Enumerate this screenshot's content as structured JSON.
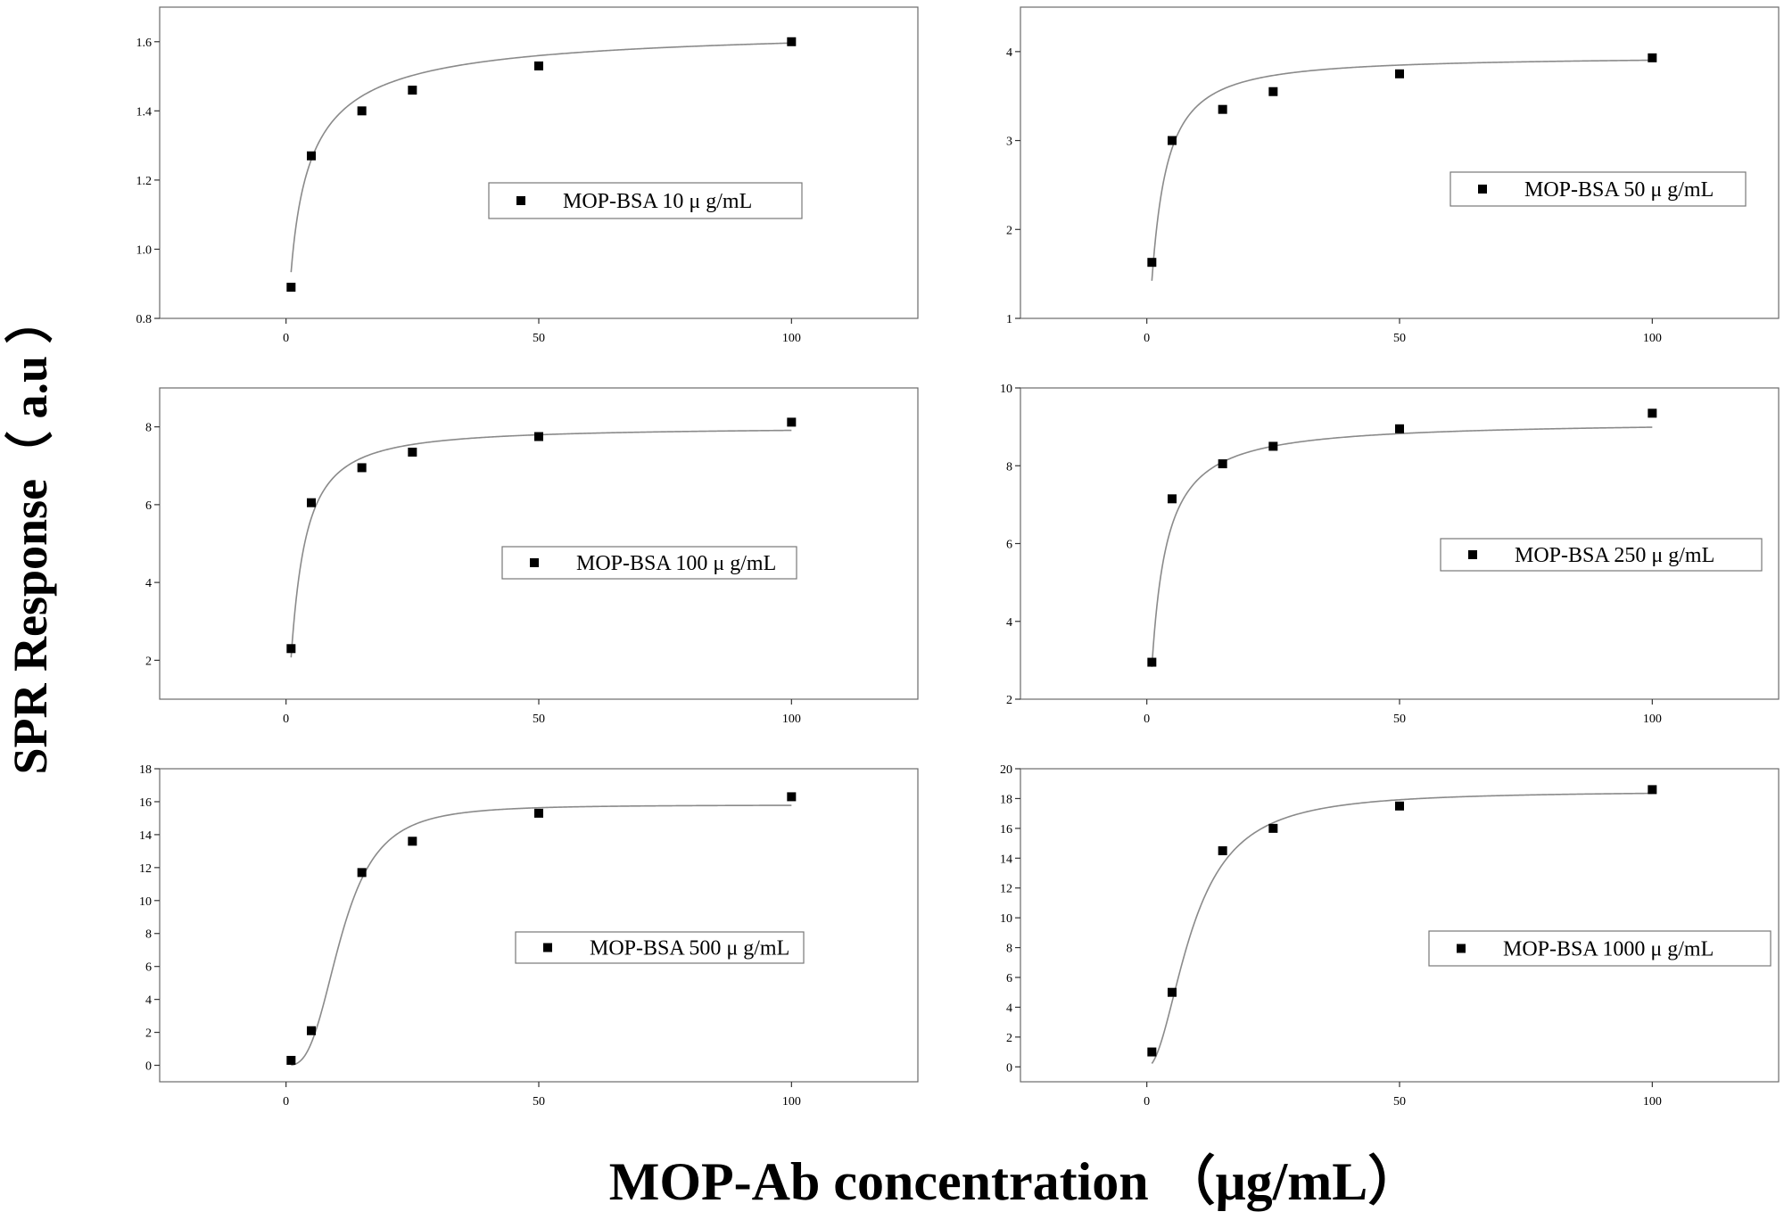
{
  "figure": {
    "ylabel": "SPR Response（ a.u ）",
    "xlabel": "MOP-Ab concentration （μg/mL）"
  },
  "chart_data": [
    {
      "type": "scatter",
      "legend": "MOP-BSA 10 μ g/mL",
      "x": [
        1,
        5,
        15,
        25,
        50,
        100
      ],
      "y": [
        0.89,
        1.27,
        1.4,
        1.46,
        1.53,
        1.6
      ],
      "fit": {
        "kind": "hill",
        "A1": 0.6,
        "A2": 1.65,
        "x0": 2.6,
        "p": 0.8
      },
      "xlim": [
        -25,
        125
      ],
      "ylim": [
        0.8,
        1.7
      ],
      "xticks": [
        0,
        50,
        100
      ],
      "yticks": [
        0.8,
        1.0,
        1.2,
        1.4,
        1.6
      ],
      "ytick_labels": [
        "0.8",
        "1.0",
        "1.2",
        "1.4",
        "1.6"
      ],
      "legend_position": "center-right"
    },
    {
      "type": "scatter",
      "legend": "MOP-BSA 50 μ g/mL",
      "x": [
        1,
        5,
        15,
        25,
        50,
        100
      ],
      "y": [
        1.63,
        3.0,
        3.35,
        3.55,
        3.75,
        3.93
      ],
      "fit": {
        "kind": "hill",
        "A1": 0.5,
        "A2": 3.95,
        "x0": 2.4,
        "p": 1.15
      },
      "xlim": [
        -25,
        125
      ],
      "ylim": [
        1,
        4.5
      ],
      "xticks": [
        0,
        50,
        100
      ],
      "yticks": [
        1,
        2,
        3,
        4
      ],
      "ytick_labels": [
        "1",
        "2",
        "3",
        "4"
      ],
      "legend_position": "center-right"
    },
    {
      "type": "scatter",
      "legend": "MOP-BSA 100 μ g/mL",
      "x": [
        1,
        5,
        15,
        25,
        50,
        100
      ],
      "y": [
        2.3,
        6.05,
        6.95,
        7.35,
        7.75,
        8.12
      ],
      "fit": {
        "kind": "hill",
        "A1": 0.0,
        "A2": 8.0,
        "x0": 2.4,
        "p": 1.2
      },
      "xlim": [
        -25,
        125
      ],
      "ylim": [
        1,
        9
      ],
      "xticks": [
        0,
        50,
        100
      ],
      "yticks": [
        2,
        4,
        6,
        8
      ],
      "ytick_labels": [
        "2",
        "4",
        "6",
        "8"
      ],
      "legend_position": "center-right"
    },
    {
      "type": "scatter",
      "legend": "MOP-BSA 250 μ g/mL",
      "x": [
        1,
        5,
        15,
        25,
        50,
        100
      ],
      "y": [
        2.95,
        7.15,
        8.05,
        8.5,
        8.95,
        9.35
      ],
      "fit": {
        "kind": "hill",
        "A1": 0.0,
        "A2": 9.15,
        "x0": 2.15,
        "p": 1.05
      },
      "xlim": [
        -25,
        125
      ],
      "ylim": [
        2,
        10
      ],
      "xticks": [
        0,
        50,
        100
      ],
      "yticks": [
        2,
        4,
        6,
        8,
        10
      ],
      "ytick_labels": [
        "2",
        "4",
        "6",
        "8",
        "10"
      ],
      "legend_position": "center-right"
    },
    {
      "type": "scatter",
      "legend": "MOP-BSA 500 μ g/mL",
      "x": [
        1,
        5,
        15,
        25,
        50,
        100
      ],
      "y": [
        0.3,
        2.1,
        11.7,
        13.6,
        15.3,
        16.3
      ],
      "fit": {
        "kind": "hill",
        "A1": 0.0,
        "A2": 15.8,
        "x0": 11.0,
        "p": 3.0
      },
      "xlim": [
        -25,
        125
      ],
      "ylim": [
        -1,
        18
      ],
      "xticks": [
        0,
        50,
        100
      ],
      "yticks": [
        0,
        2,
        4,
        6,
        8,
        10,
        12,
        14,
        16,
        18
      ],
      "ytick_labels": [
        "0",
        "2",
        "4",
        "6",
        "8",
        "10",
        "12",
        "14",
        "16",
        "18"
      ],
      "legend_position": "center-right"
    },
    {
      "type": "scatter",
      "legend": "MOP-BSA 1000 μ g/mL",
      "x": [
        1,
        5,
        15,
        25,
        50,
        100
      ],
      "y": [
        1.0,
        5.0,
        14.5,
        16.0,
        17.5,
        18.6
      ],
      "fit": {
        "kind": "hill",
        "A1": 0.0,
        "A2": 18.5,
        "x0": 9.0,
        "p": 2.0
      },
      "xlim": [
        -25,
        125
      ],
      "ylim": [
        -1,
        20
      ],
      "xticks": [
        0,
        50,
        100
      ],
      "yticks": [
        0,
        2,
        4,
        6,
        8,
        10,
        12,
        14,
        16,
        18,
        20
      ],
      "ytick_labels": [
        "0",
        "2",
        "4",
        "6",
        "8",
        "10",
        "12",
        "14",
        "16",
        "18",
        "20"
      ],
      "legend_position": "center-right"
    }
  ]
}
